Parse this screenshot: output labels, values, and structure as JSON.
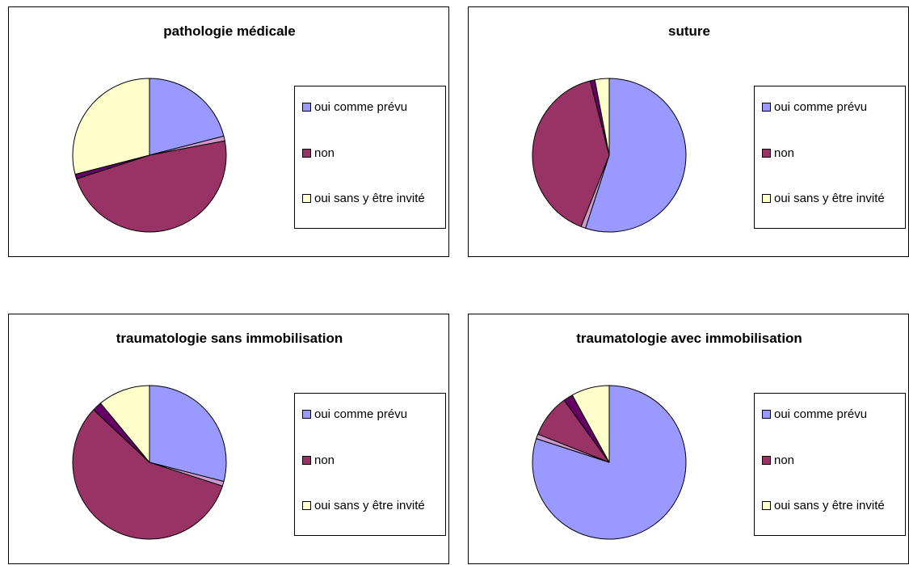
{
  "chart_data": [
    {
      "type": "pie",
      "title": "pathologie médicale",
      "categories": [
        "oui comme prévu",
        null,
        "non",
        null,
        "oui sans y être invité"
      ],
      "values": [
        21,
        1,
        48,
        1,
        29
      ],
      "colors": [
        "#9999ff",
        "#cc99cc",
        "#993366",
        "#660066",
        "#ffffcc"
      ]
    },
    {
      "type": "pie",
      "title": "suture",
      "categories": [
        "oui comme prévu",
        null,
        "non",
        null,
        "oui sans y être invité"
      ],
      "values": [
        55,
        1,
        40,
        1,
        3
      ],
      "colors": [
        "#9999ff",
        "#cc99cc",
        "#993366",
        "#660066",
        "#ffffcc"
      ]
    },
    {
      "type": "pie",
      "title": "traumatologie sans immobilisation",
      "categories": [
        "oui comme prévu",
        null,
        "non",
        null,
        "oui sans y être invité"
      ],
      "values": [
        29,
        1,
        57,
        2,
        11
      ],
      "colors": [
        "#9999ff",
        "#cc99cc",
        "#993366",
        "#660066",
        "#ffffcc"
      ]
    },
    {
      "type": "pie",
      "title": "traumatologie avec immobilisation",
      "categories": [
        "oui comme prévu",
        null,
        "non",
        null,
        "oui sans y être invité"
      ],
      "values": [
        80,
        1,
        9,
        2,
        8
      ],
      "colors": [
        "#9999ff",
        "#cc99cc",
        "#993366",
        "#660066",
        "#ffffcc"
      ]
    }
  ]
}
